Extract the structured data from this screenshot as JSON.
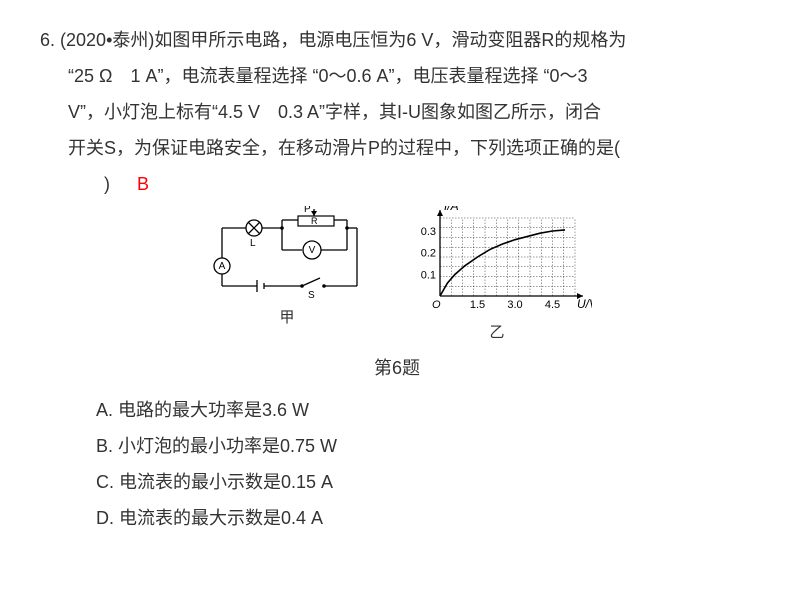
{
  "question": {
    "number": "6.",
    "source": "(2020•泰州)",
    "line1_rest": "如图甲所示电路，电源电压恒为6 V，滑动变阻器R的规格为",
    "line2": "“25 Ω　1 A”，电流表量程选择 “0～0.6 A”，电压表量程选择 “0～3",
    "line3": "V”，小灯泡上标有“4.5 V　0.3 A”字样，其I-U图象如图乙所示，闭合",
    "line4": "开关S，为保证电路安全，在移动滑片P的过程中，下列选项正确的是(",
    "line5": "　　)",
    "answer": "B"
  },
  "figure": {
    "caption": "第6题",
    "circuit_label": "甲",
    "graph_label": "乙",
    "circuit": {
      "components": {
        "lamp": "L",
        "slider": "P",
        "rheostat": "R",
        "voltmeter": "V",
        "ammeter": "A",
        "switch": "S"
      },
      "stroke": "#000000",
      "bg": "#ffffff"
    },
    "graph": {
      "type": "line",
      "y_label": "I/A",
      "x_label": "U/V",
      "x_ticks": [
        1.5,
        3.0,
        4.5
      ],
      "y_ticks": [
        0.1,
        0.2,
        0.3
      ],
      "xlim": [
        0,
        5.4
      ],
      "ylim": [
        0,
        0.36
      ],
      "grid_color": "#000000",
      "curve_color": "#000000",
      "curve": [
        [
          0,
          0
        ],
        [
          0.3,
          0.06
        ],
        [
          0.6,
          0.1
        ],
        [
          1.0,
          0.14
        ],
        [
          1.5,
          0.18
        ],
        [
          2.0,
          0.215
        ],
        [
          2.5,
          0.24
        ],
        [
          3.0,
          0.26
        ],
        [
          3.5,
          0.275
        ],
        [
          4.0,
          0.29
        ],
        [
          4.5,
          0.3
        ],
        [
          5.0,
          0.305
        ]
      ],
      "label_fontsize": 12,
      "tick_fontsize": 11
    }
  },
  "options": {
    "A": "A. 电路的最大功率是3.6 W",
    "B": "B. 小灯泡的最小功率是0.75 W",
    "C": "C. 电流表的最小示数是0.15 A",
    "D": "D. 电流表的最大示数是0.4 A"
  }
}
